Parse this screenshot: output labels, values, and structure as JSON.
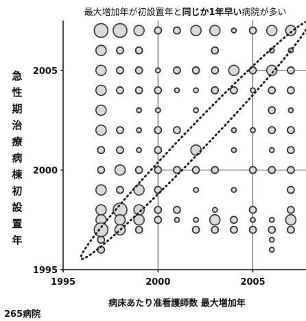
{
  "chart_data": {
    "type": "scatter",
    "title_parts": [
      {
        "text": "最大増加年が初設置年と",
        "bold": false
      },
      {
        "text": "同じか1年早い",
        "bold": true
      },
      {
        "text": "病院が多い",
        "bold": false
      }
    ],
    "xlabel": "病床あたり准看護師数 最大増加年",
    "ylabel": "急性期治療病棟初設置年",
    "footnote": "265病院",
    "xlim": [
      1995,
      2007.8
    ],
    "ylim": [
      1995,
      2007.5
    ],
    "xticks": [
      1995,
      2000,
      2005
    ],
    "yticks": [
      1995,
      2000,
      2005
    ],
    "grid_lines": [
      2000,
      2005
    ],
    "marker_color": "#d9d9d9",
    "edge_color": "#333333",
    "ellipse_stroke": "#222222",
    "points": [
      {
        "x": 1997,
        "y": 2007,
        "s": 3
      },
      {
        "x": 1998,
        "y": 2007,
        "s": 3
      },
      {
        "x": 1999,
        "y": 2007,
        "s": 2
      },
      {
        "x": 2000,
        "y": 2007,
        "s": 1
      },
      {
        "x": 2001,
        "y": 2007,
        "s": 1
      },
      {
        "x": 2002,
        "y": 2007,
        "s": 2
      },
      {
        "x": 2003,
        "y": 2007,
        "s": 2
      },
      {
        "x": 2004,
        "y": 2007,
        "s": 0
      },
      {
        "x": 2005,
        "y": 2007,
        "s": 1
      },
      {
        "x": 2006,
        "y": 2007,
        "s": 2
      },
      {
        "x": 2007,
        "y": 2007,
        "s": 2
      },
      {
        "x": 1997,
        "y": 2006,
        "s": 2
      },
      {
        "x": 1998,
        "y": 2006,
        "s": 1
      },
      {
        "x": 1999,
        "y": 2006,
        "s": 1
      },
      {
        "x": 2003,
        "y": 2006,
        "s": 1
      },
      {
        "x": 2006,
        "y": 2006,
        "s": 0
      },
      {
        "x": 2007,
        "y": 2006,
        "s": 0
      },
      {
        "x": 1997,
        "y": 2005,
        "s": 2
      },
      {
        "x": 1998,
        "y": 2005,
        "s": 1
      },
      {
        "x": 1999,
        "y": 2005,
        "s": 1
      },
      {
        "x": 2000,
        "y": 2005,
        "s": 0
      },
      {
        "x": 2001,
        "y": 2005,
        "s": 1
      },
      {
        "x": 2002,
        "y": 2005,
        "s": 1
      },
      {
        "x": 2003,
        "y": 2005,
        "s": 1
      },
      {
        "x": 2004,
        "y": 2005,
        "s": 2
      },
      {
        "x": 2005,
        "y": 2005,
        "s": 1
      },
      {
        "x": 2006,
        "y": 2005,
        "s": 2
      },
      {
        "x": 2007,
        "y": 2005,
        "s": 1
      },
      {
        "x": 1997,
        "y": 2004,
        "s": 2
      },
      {
        "x": 1998,
        "y": 2004,
        "s": 1
      },
      {
        "x": 1999,
        "y": 2004,
        "s": 1
      },
      {
        "x": 2000,
        "y": 2004,
        "s": 1
      },
      {
        "x": 2001,
        "y": 2004,
        "s": 0
      },
      {
        "x": 2002,
        "y": 2004,
        "s": 0
      },
      {
        "x": 2003,
        "y": 2004,
        "s": 1
      },
      {
        "x": 2004,
        "y": 2004,
        "s": 1
      },
      {
        "x": 2005,
        "y": 2004,
        "s": 0
      },
      {
        "x": 2006,
        "y": 2004,
        "s": 1
      },
      {
        "x": 2007,
        "y": 2004,
        "s": 1
      },
      {
        "x": 1997,
        "y": 2003,
        "s": 2
      },
      {
        "x": 1999,
        "y": 2003,
        "s": 0
      },
      {
        "x": 2000,
        "y": 2003,
        "s": 0
      },
      {
        "x": 2002,
        "y": 2003,
        "s": 0
      },
      {
        "x": 2006,
        "y": 2003,
        "s": 1
      },
      {
        "x": 2007,
        "y": 2003,
        "s": 0
      },
      {
        "x": 1997,
        "y": 2002,
        "s": 2
      },
      {
        "x": 1998,
        "y": 2002,
        "s": 1
      },
      {
        "x": 1999,
        "y": 2002,
        "s": 0
      },
      {
        "x": 2000,
        "y": 2002,
        "s": 1
      },
      {
        "x": 2001,
        "y": 2002,
        "s": 1
      },
      {
        "x": 2004,
        "y": 2002,
        "s": 0
      },
      {
        "x": 2005,
        "y": 2002,
        "s": 0
      },
      {
        "x": 2006,
        "y": 2002,
        "s": 1
      },
      {
        "x": 2007,
        "y": 2002,
        "s": 1
      },
      {
        "x": 1997,
        "y": 2001,
        "s": 1
      },
      {
        "x": 1998,
        "y": 2001,
        "s": 1
      },
      {
        "x": 1999,
        "y": 2001,
        "s": 0
      },
      {
        "x": 2000,
        "y": 2001,
        "s": 1
      },
      {
        "x": 2002,
        "y": 2001,
        "s": 2
      },
      {
        "x": 2004,
        "y": 2001,
        "s": 0
      },
      {
        "x": 2006,
        "y": 2001,
        "s": 0
      },
      {
        "x": 2007,
        "y": 2001,
        "s": 1
      },
      {
        "x": 1997,
        "y": 2000,
        "s": 1
      },
      {
        "x": 1998,
        "y": 2000,
        "s": 2
      },
      {
        "x": 1999,
        "y": 2000,
        "s": 1
      },
      {
        "x": 2000,
        "y": 2000,
        "s": 1
      },
      {
        "x": 2001,
        "y": 2000,
        "s": 1
      },
      {
        "x": 2002,
        "y": 2000,
        "s": 1
      },
      {
        "x": 2003,
        "y": 2000,
        "s": 1
      },
      {
        "x": 2005,
        "y": 2000,
        "s": 1
      },
      {
        "x": 2006,
        "y": 2000,
        "s": 1
      },
      {
        "x": 2007,
        "y": 2000,
        "s": 1
      },
      {
        "x": 1997,
        "y": 1999,
        "s": 2
      },
      {
        "x": 1998,
        "y": 1999,
        "s": 1
      },
      {
        "x": 1999,
        "y": 1999,
        "s": 2
      },
      {
        "x": 2000,
        "y": 1999,
        "s": 1
      },
      {
        "x": 2002,
        "y": 1999,
        "s": 0
      },
      {
        "x": 2004,
        "y": 1999,
        "s": 0
      },
      {
        "x": 2007,
        "y": 1999,
        "s": 1
      },
      {
        "x": 1997,
        "y": 1998,
        "s": 2
      },
      {
        "x": 1998,
        "y": 1998,
        "s": 3
      },
      {
        "x": 1999,
        "y": 1998,
        "s": 2
      },
      {
        "x": 2000,
        "y": 1998,
        "s": 1
      },
      {
        "x": 2001,
        "y": 1998,
        "s": 1
      },
      {
        "x": 2003,
        "y": 1998,
        "s": 0
      },
      {
        "x": 2005,
        "y": 1998,
        "s": 1
      },
      {
        "x": 2007,
        "y": 1998,
        "s": 1
      },
      {
        "x": 1997,
        "y": 1997.5,
        "s": 2
      },
      {
        "x": 1998,
        "y": 1997.5,
        "s": 2
      },
      {
        "x": 1999,
        "y": 1997.5,
        "s": 2
      },
      {
        "x": 2000,
        "y": 1997.5,
        "s": 1
      },
      {
        "x": 2001,
        "y": 1997.5,
        "s": 0
      },
      {
        "x": 2002,
        "y": 1997.5,
        "s": 0
      },
      {
        "x": 2003,
        "y": 1997.5,
        "s": 2
      },
      {
        "x": 2004,
        "y": 1997.5,
        "s": 1
      },
      {
        "x": 2005,
        "y": 1997.5,
        "s": 0
      },
      {
        "x": 2006,
        "y": 1997.5,
        "s": 0
      },
      {
        "x": 2007,
        "y": 1997.5,
        "s": 2
      },
      {
        "x": 1997,
        "y": 1997,
        "s": 3
      },
      {
        "x": 1998,
        "y": 1997,
        "s": 2
      },
      {
        "x": 1999,
        "y": 1997,
        "s": 1
      },
      {
        "x": 2002,
        "y": 1997,
        "s": 1
      },
      {
        "x": 2003,
        "y": 1997,
        "s": 1
      },
      {
        "x": 2004,
        "y": 1997,
        "s": 1
      },
      {
        "x": 2005,
        "y": 1997,
        "s": 1
      },
      {
        "x": 2006,
        "y": 1997,
        "s": 1
      },
      {
        "x": 2007,
        "y": 1997,
        "s": 1
      },
      {
        "x": 1997,
        "y": 1996.5,
        "s": 1
      },
      {
        "x": 2006,
        "y": 1996.5,
        "s": 0
      },
      {
        "x": 1997,
        "y": 1996,
        "s": 1
      },
      {
        "x": 2006,
        "y": 1996,
        "s": 0
      }
    ]
  }
}
